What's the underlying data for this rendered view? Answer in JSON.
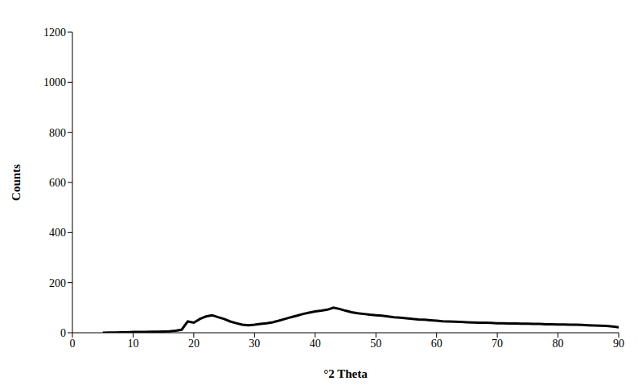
{
  "chart_data": {
    "type": "line",
    "x_label": "°2 Theta",
    "y_label": "Counts",
    "color": "#000000",
    "grid": false,
    "xlim": [
      0,
      90
    ],
    "ylim": [
      0,
      1200
    ],
    "xticks": [
      0,
      10,
      20,
      30,
      40,
      50,
      60,
      70,
      80,
      90
    ],
    "yticks": [
      0,
      200,
      400,
      600,
      800,
      1000,
      1200
    ],
    "x": [
      5,
      6,
      7,
      8,
      9,
      10,
      11,
      12,
      13,
      14,
      15,
      16,
      17,
      18,
      19,
      20,
      21,
      22,
      23,
      24,
      25,
      26,
      27,
      28,
      29,
      30,
      31,
      32,
      33,
      34,
      35,
      36,
      37,
      38,
      39,
      40,
      41,
      42,
      43,
      44,
      45,
      46,
      47,
      48,
      49,
      50,
      51,
      52,
      53,
      54,
      55,
      56,
      57,
      58,
      59,
      60,
      61,
      62,
      63,
      64,
      65,
      66,
      67,
      68,
      69,
      70,
      71,
      72,
      73,
      74,
      75,
      76,
      77,
      78,
      79,
      80,
      81,
      82,
      83,
      84,
      85,
      86,
      87,
      88,
      89,
      90
    ],
    "values": [
      0,
      1,
      1,
      2,
      2,
      3,
      3,
      3,
      4,
      4,
      5,
      6,
      8,
      12,
      45,
      40,
      55,
      65,
      70,
      62,
      55,
      45,
      38,
      32,
      30,
      32,
      35,
      38,
      42,
      48,
      55,
      62,
      68,
      75,
      80,
      85,
      88,
      92,
      100,
      95,
      88,
      82,
      78,
      75,
      72,
      70,
      68,
      65,
      62,
      60,
      58,
      55,
      53,
      52,
      50,
      48,
      46,
      45,
      44,
      43,
      42,
      41,
      40,
      40,
      39,
      38,
      38,
      37,
      37,
      36,
      36,
      35,
      35,
      34,
      34,
      33,
      33,
      32,
      32,
      31,
      30,
      29,
      28,
      27,
      25,
      22
    ]
  }
}
